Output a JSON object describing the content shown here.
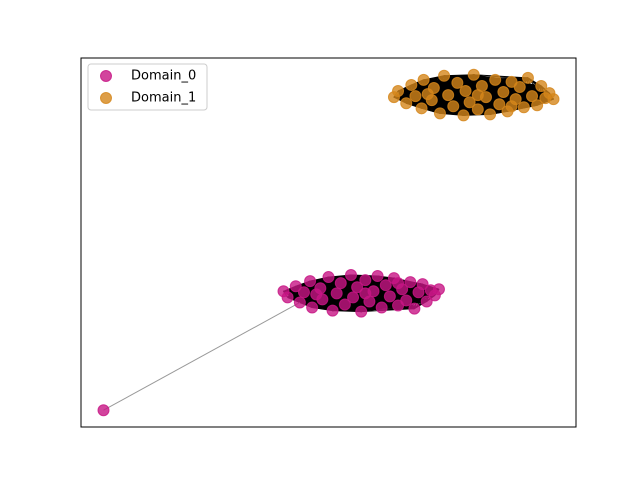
{
  "chart_data": {
    "type": "network",
    "legend": "upper left",
    "series": [
      {
        "name": "Domain_0",
        "color": "#c71585",
        "complete": true,
        "x": [
          -0.16,
          -0.12,
          -0.04,
          0.0,
          0.04,
          0.1,
          0.12,
          0.2,
          0.22,
          0.28,
          0.32,
          0.36,
          0.4,
          0.44,
          0.5,
          0.52,
          0.56,
          0.6,
          0.64,
          0.68,
          0.72,
          0.76,
          0.8,
          0.84,
          0.88,
          0.92,
          0.96,
          1.0,
          1.04,
          1.08,
          1.12,
          1.16,
          1.2,
          1.24,
          1.28,
          1.32,
          1.36,
          0.16,
          0.64,
          0.96
        ],
        "y": [
          -0.51,
          -0.57,
          -0.46,
          -0.62,
          -0.52,
          -0.41,
          -0.67,
          -0.48,
          -0.59,
          -0.37,
          -0.7,
          -0.53,
          -0.43,
          -0.64,
          -0.35,
          -0.57,
          -0.47,
          -0.71,
          -0.4,
          -0.61,
          -0.51,
          -0.36,
          -0.67,
          -0.45,
          -0.56,
          -0.38,
          -0.65,
          -0.49,
          -0.6,
          -0.42,
          -0.68,
          -0.52,
          -0.44,
          -0.61,
          -0.5,
          -0.55,
          -0.49,
          -0.54,
          -0.53,
          -0.43
        ]
      },
      {
        "name": "Domain_1",
        "color": "#d4861a",
        "complete": true,
        "x": [
          0.92,
          0.96,
          1.04,
          1.09,
          1.13,
          1.19,
          1.21,
          1.29,
          1.31,
          1.37,
          1.41,
          1.45,
          1.5,
          1.54,
          1.6,
          1.62,
          1.66,
          1.7,
          1.74,
          1.78,
          1.82,
          1.86,
          1.91,
          1.95,
          1.99,
          2.03,
          2.07,
          2.11,
          2.15,
          2.19,
          2.23,
          2.27,
          2.32,
          2.36,
          2.4,
          2.44,
          2.48,
          1.25,
          1.74,
          2.07
        ],
        "y": [
          1.4,
          1.46,
          1.34,
          1.52,
          1.41,
          1.29,
          1.57,
          1.37,
          1.49,
          1.24,
          1.61,
          1.42,
          1.31,
          1.54,
          1.22,
          1.46,
          1.35,
          1.62,
          1.28,
          1.51,
          1.4,
          1.23,
          1.57,
          1.33,
          1.45,
          1.26,
          1.55,
          1.38,
          1.5,
          1.3,
          1.59,
          1.41,
          1.32,
          1.51,
          1.39,
          1.44,
          1.38,
          1.43,
          1.42,
          1.31
        ]
      }
    ],
    "outliers": [
      {
        "series": 0,
        "x": -1.92,
        "y": -1.68,
        "link": 3
      }
    ]
  }
}
